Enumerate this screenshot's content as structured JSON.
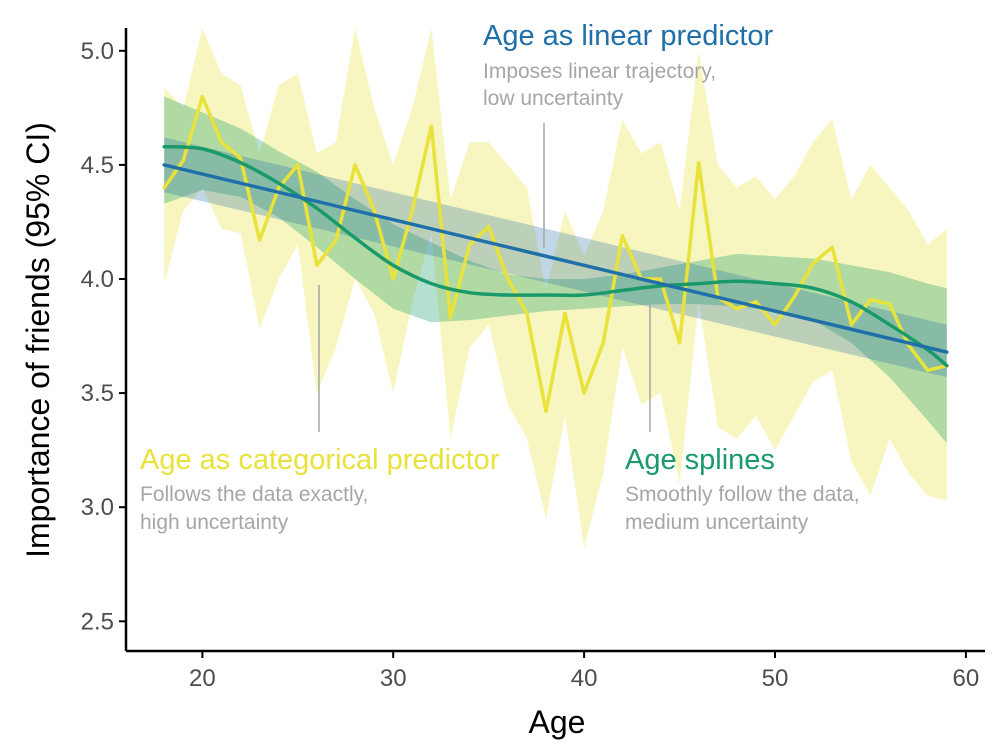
{
  "chart_data": {
    "type": "line",
    "xlabel": "Age",
    "ylabel": "Importance of friends (95% CI)",
    "xlim": [
      16,
      61
    ],
    "ylim": [
      2.37,
      5.1
    ],
    "x_ticks": [
      20,
      30,
      40,
      50,
      60
    ],
    "x_tick_labels": [
      "20",
      "30",
      "40",
      "50",
      "60"
    ],
    "y_ticks": [
      2.5,
      3.0,
      3.5,
      4.0,
      4.5,
      5.0
    ],
    "y_tick_labels": [
      "2.5",
      "3.0",
      "3.5",
      "4.0",
      "4.5",
      "5.0"
    ],
    "grid": false,
    "colors": {
      "categorical": "#e8e23a",
      "linear": "#1f6fa8",
      "splines": "#1a9a6a",
      "leader": "#a6a6a6",
      "axis": "#000000"
    },
    "series": [
      {
        "name": "Age as categorical predictor",
        "x": [
          18,
          19,
          20,
          21,
          22,
          23,
          24,
          25,
          26,
          27,
          28,
          29,
          30,
          31,
          32,
          33,
          34,
          35,
          36,
          37,
          38,
          39,
          40,
          41,
          42,
          43,
          44,
          45,
          46,
          47,
          48,
          49,
          50,
          51,
          52,
          53,
          54,
          55,
          56,
          57,
          58,
          59
        ],
        "values": [
          4.4,
          4.52,
          4.8,
          4.6,
          4.53,
          4.17,
          4.4,
          4.5,
          4.06,
          4.17,
          4.5,
          4.3,
          4.0,
          4.3,
          4.67,
          3.83,
          4.15,
          4.23,
          4.0,
          3.85,
          3.42,
          3.85,
          3.5,
          3.72,
          4.19,
          4.0,
          4.0,
          3.72,
          4.51,
          3.92,
          3.87,
          3.9,
          3.8,
          3.92,
          4.07,
          4.14,
          3.8,
          3.91,
          3.89,
          3.71,
          3.6,
          3.62
        ],
        "ci_lower": [
          3.98,
          4.3,
          4.4,
          4.22,
          4.2,
          3.78,
          4.0,
          4.15,
          3.5,
          3.7,
          4.0,
          3.85,
          3.5,
          3.9,
          4.2,
          3.3,
          3.7,
          3.8,
          3.45,
          3.3,
          2.95,
          3.4,
          2.82,
          3.15,
          3.7,
          3.45,
          3.5,
          3.1,
          3.9,
          3.35,
          3.3,
          3.4,
          3.25,
          3.4,
          3.55,
          3.6,
          3.2,
          3.05,
          3.3,
          3.15,
          3.05,
          3.03
        ],
        "ci_upper": [
          4.84,
          4.75,
          5.1,
          4.9,
          4.85,
          4.55,
          4.85,
          4.9,
          4.55,
          4.6,
          5.1,
          4.75,
          4.5,
          4.75,
          5.1,
          4.35,
          4.6,
          4.6,
          4.5,
          4.4,
          3.95,
          4.3,
          4.1,
          4.3,
          4.7,
          4.55,
          4.6,
          4.3,
          5.0,
          4.5,
          4.4,
          4.45,
          4.35,
          4.45,
          4.6,
          4.7,
          4.35,
          4.5,
          4.4,
          4.3,
          4.15,
          4.22
        ]
      },
      {
        "name": "Age as linear predictor",
        "x": [
          18,
          59
        ],
        "values": [
          4.5,
          3.68
        ],
        "ci_lower": [
          4.38,
          3.57
        ],
        "ci_upper": [
          4.62,
          3.8
        ]
      },
      {
        "name": "Age splines",
        "x": [
          18,
          20,
          22,
          24,
          26,
          28,
          30,
          32,
          34,
          36,
          38,
          40,
          42,
          44,
          46,
          48,
          50,
          52,
          54,
          56,
          58,
          59
        ],
        "values": [
          4.58,
          4.57,
          4.51,
          4.42,
          4.31,
          4.18,
          4.06,
          3.98,
          3.94,
          3.93,
          3.93,
          3.93,
          3.95,
          3.97,
          3.98,
          3.99,
          3.98,
          3.96,
          3.9,
          3.8,
          3.69,
          3.62
        ],
        "ci_lower": [
          4.33,
          4.39,
          4.36,
          4.27,
          4.14,
          4.0,
          3.87,
          3.81,
          3.82,
          3.84,
          3.86,
          3.87,
          3.88,
          3.89,
          3.89,
          3.88,
          3.86,
          3.82,
          3.72,
          3.57,
          3.38,
          3.28
        ],
        "ci_upper": [
          4.8,
          4.73,
          4.66,
          4.56,
          4.47,
          4.35,
          4.24,
          4.16,
          4.08,
          4.02,
          4.0,
          4.0,
          4.02,
          4.05,
          4.08,
          4.11,
          4.1,
          4.09,
          4.06,
          4.03,
          3.98,
          3.96
        ]
      }
    ],
    "annotations": [
      {
        "title": "Age as linear predictor",
        "subtitle_lines": [
          "Imposes linear trajectory,",
          "low uncertainty"
        ],
        "series": "linear"
      },
      {
        "title": "Age as categorical predictor",
        "subtitle_lines": [
          "Follows the data exactly,",
          "high uncertainty"
        ],
        "series": "categorical"
      },
      {
        "title": "Age splines",
        "subtitle_lines": [
          "Smoothly follow the data,",
          "medium uncertainty"
        ],
        "series": "splines"
      }
    ]
  }
}
